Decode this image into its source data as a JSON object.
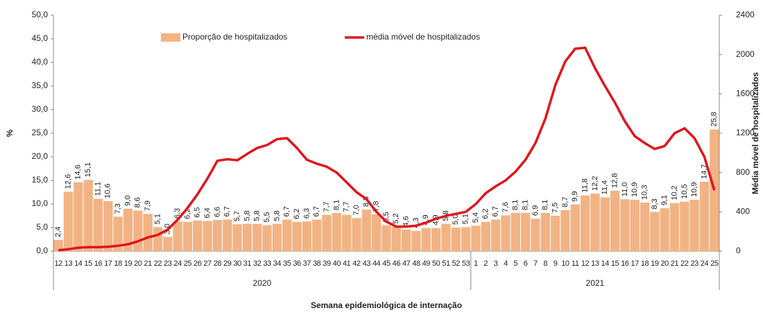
{
  "chart_data": {
    "type": "bar",
    "x_label": "Semana epidemiológica  de internação",
    "y_label": "%",
    "y2_label": "Média móvel de hospitalizados",
    "category_groups": [
      {
        "label": "2020",
        "categories": [
          "12",
          "13",
          "14",
          "15",
          "16",
          "17",
          "18",
          "19",
          "20",
          "21",
          "22",
          "23",
          "24",
          "25",
          "26",
          "27",
          "28",
          "29",
          "30",
          "31",
          "32",
          "33",
          "34",
          "35",
          "36",
          "37",
          "38",
          "39",
          "40",
          "41",
          "42",
          "43",
          "44",
          "45",
          "46",
          "47",
          "48",
          "49",
          "50",
          "51",
          "52",
          "53"
        ]
      },
      {
        "label": "2021",
        "categories": [
          "1",
          "2",
          "3",
          "4",
          "5",
          "6",
          "7",
          "8",
          "9",
          "10",
          "11",
          "12",
          "13",
          "14",
          "15",
          "16",
          "17",
          "18",
          "19",
          "20",
          "21",
          "22",
          "23",
          "24",
          "25"
        ]
      }
    ],
    "series": [
      {
        "name": "Proporção de hospitalizados",
        "type": "bar",
        "color": "#f2b384",
        "values": [
          2.4,
          12.6,
          14.6,
          15.1,
          11.1,
          10.6,
          7.3,
          9.0,
          8.6,
          7.9,
          5.1,
          3.0,
          6.3,
          6.2,
          6.5,
          6.4,
          6.6,
          6.7,
          5.7,
          5.8,
          5.8,
          5.5,
          5.8,
          6.7,
          6.2,
          6.3,
          6.7,
          7.7,
          8.1,
          7.7,
          7.0,
          8.8,
          7.8,
          5.5,
          5.2,
          4.6,
          4.3,
          4.9,
          4.9,
          5.8,
          5.0,
          5.1,
          5.4,
          6.2,
          6.7,
          7.6,
          8.1,
          8.1,
          6.9,
          8.1,
          7.5,
          8.7,
          9.9,
          11.8,
          12.2,
          11.4,
          12.8,
          11.0,
          10.9,
          10.3,
          8.3,
          9.1,
          10.2,
          10.5,
          10.9,
          14.7,
          25.8
        ],
        "value_labels": [
          "2,4",
          "12,6",
          "14,6",
          "15,1",
          "11,1",
          "10,6",
          "7,3",
          "9,0",
          "8,6",
          "7,9",
          "5,1",
          "3,0",
          "6,3",
          "6,2",
          "6,5",
          "6,4",
          "6,6",
          "6,7",
          "5,7",
          "5,8",
          "5,8",
          "5,5",
          "5,8",
          "6,7",
          "6,2",
          "6,3",
          "6,7",
          "7,7",
          "8,1",
          "7,7",
          "7,0",
          "8,8",
          "7,8",
          "5,5",
          "5,2",
          "4,6",
          "4,3",
          "4,9",
          "4,9",
          "5,8",
          "5,0",
          "5,1",
          "5,4",
          "6,2",
          "6,7",
          "7,6",
          "8,1",
          "8,1",
          "6,9",
          "8,1",
          "7,5",
          "8,7",
          "9,9",
          "11,8",
          "12,2",
          "11,4",
          "12,8",
          "11,0",
          "10,9",
          "10,3",
          "8,3",
          "9,1",
          "10,2",
          "10,5",
          "10,9",
          "14,7",
          "25,8"
        ]
      },
      {
        "name": "média móvel de hospitalizados",
        "type": "line",
        "axis": "y2",
        "color": "#e3131b",
        "values": [
          10,
          20,
          35,
          40,
          40,
          45,
          55,
          70,
          100,
          140,
          165,
          220,
          320,
          440,
          580,
          740,
          920,
          935,
          925,
          990,
          1050,
          1080,
          1140,
          1150,
          1050,
          930,
          890,
          860,
          800,
          700,
          600,
          530,
          400,
          300,
          250,
          250,
          260,
          290,
          330,
          360,
          380,
          400,
          480,
          590,
          660,
          720,
          810,
          930,
          1100,
          1350,
          1690,
          1930,
          2060,
          2070,
          1860,
          1680,
          1510,
          1320,
          1170,
          1100,
          1040,
          1070,
          1200,
          1250,
          1150,
          960,
          620
        ]
      }
    ],
    "ylim": [
      0,
      50
    ],
    "yticks": [
      {
        "value": 0,
        "label": "0,0"
      },
      {
        "value": 5,
        "label": "5,0"
      },
      {
        "value": 10,
        "label": "10,0"
      },
      {
        "value": 15,
        "label": "15,0"
      },
      {
        "value": 20,
        "label": "20,0"
      },
      {
        "value": 25,
        "label": "25,0"
      },
      {
        "value": 30,
        "label": "30,0"
      },
      {
        "value": 35,
        "label": "35,0"
      },
      {
        "value": 40,
        "label": "40,0"
      },
      {
        "value": 45,
        "label": "45,0"
      },
      {
        "value": 50,
        "label": "50,0"
      }
    ],
    "y2lim": [
      0,
      2400
    ],
    "y2ticks": [
      0,
      400,
      800,
      1200,
      1600,
      2000,
      2400
    ],
    "legend": "top"
  }
}
